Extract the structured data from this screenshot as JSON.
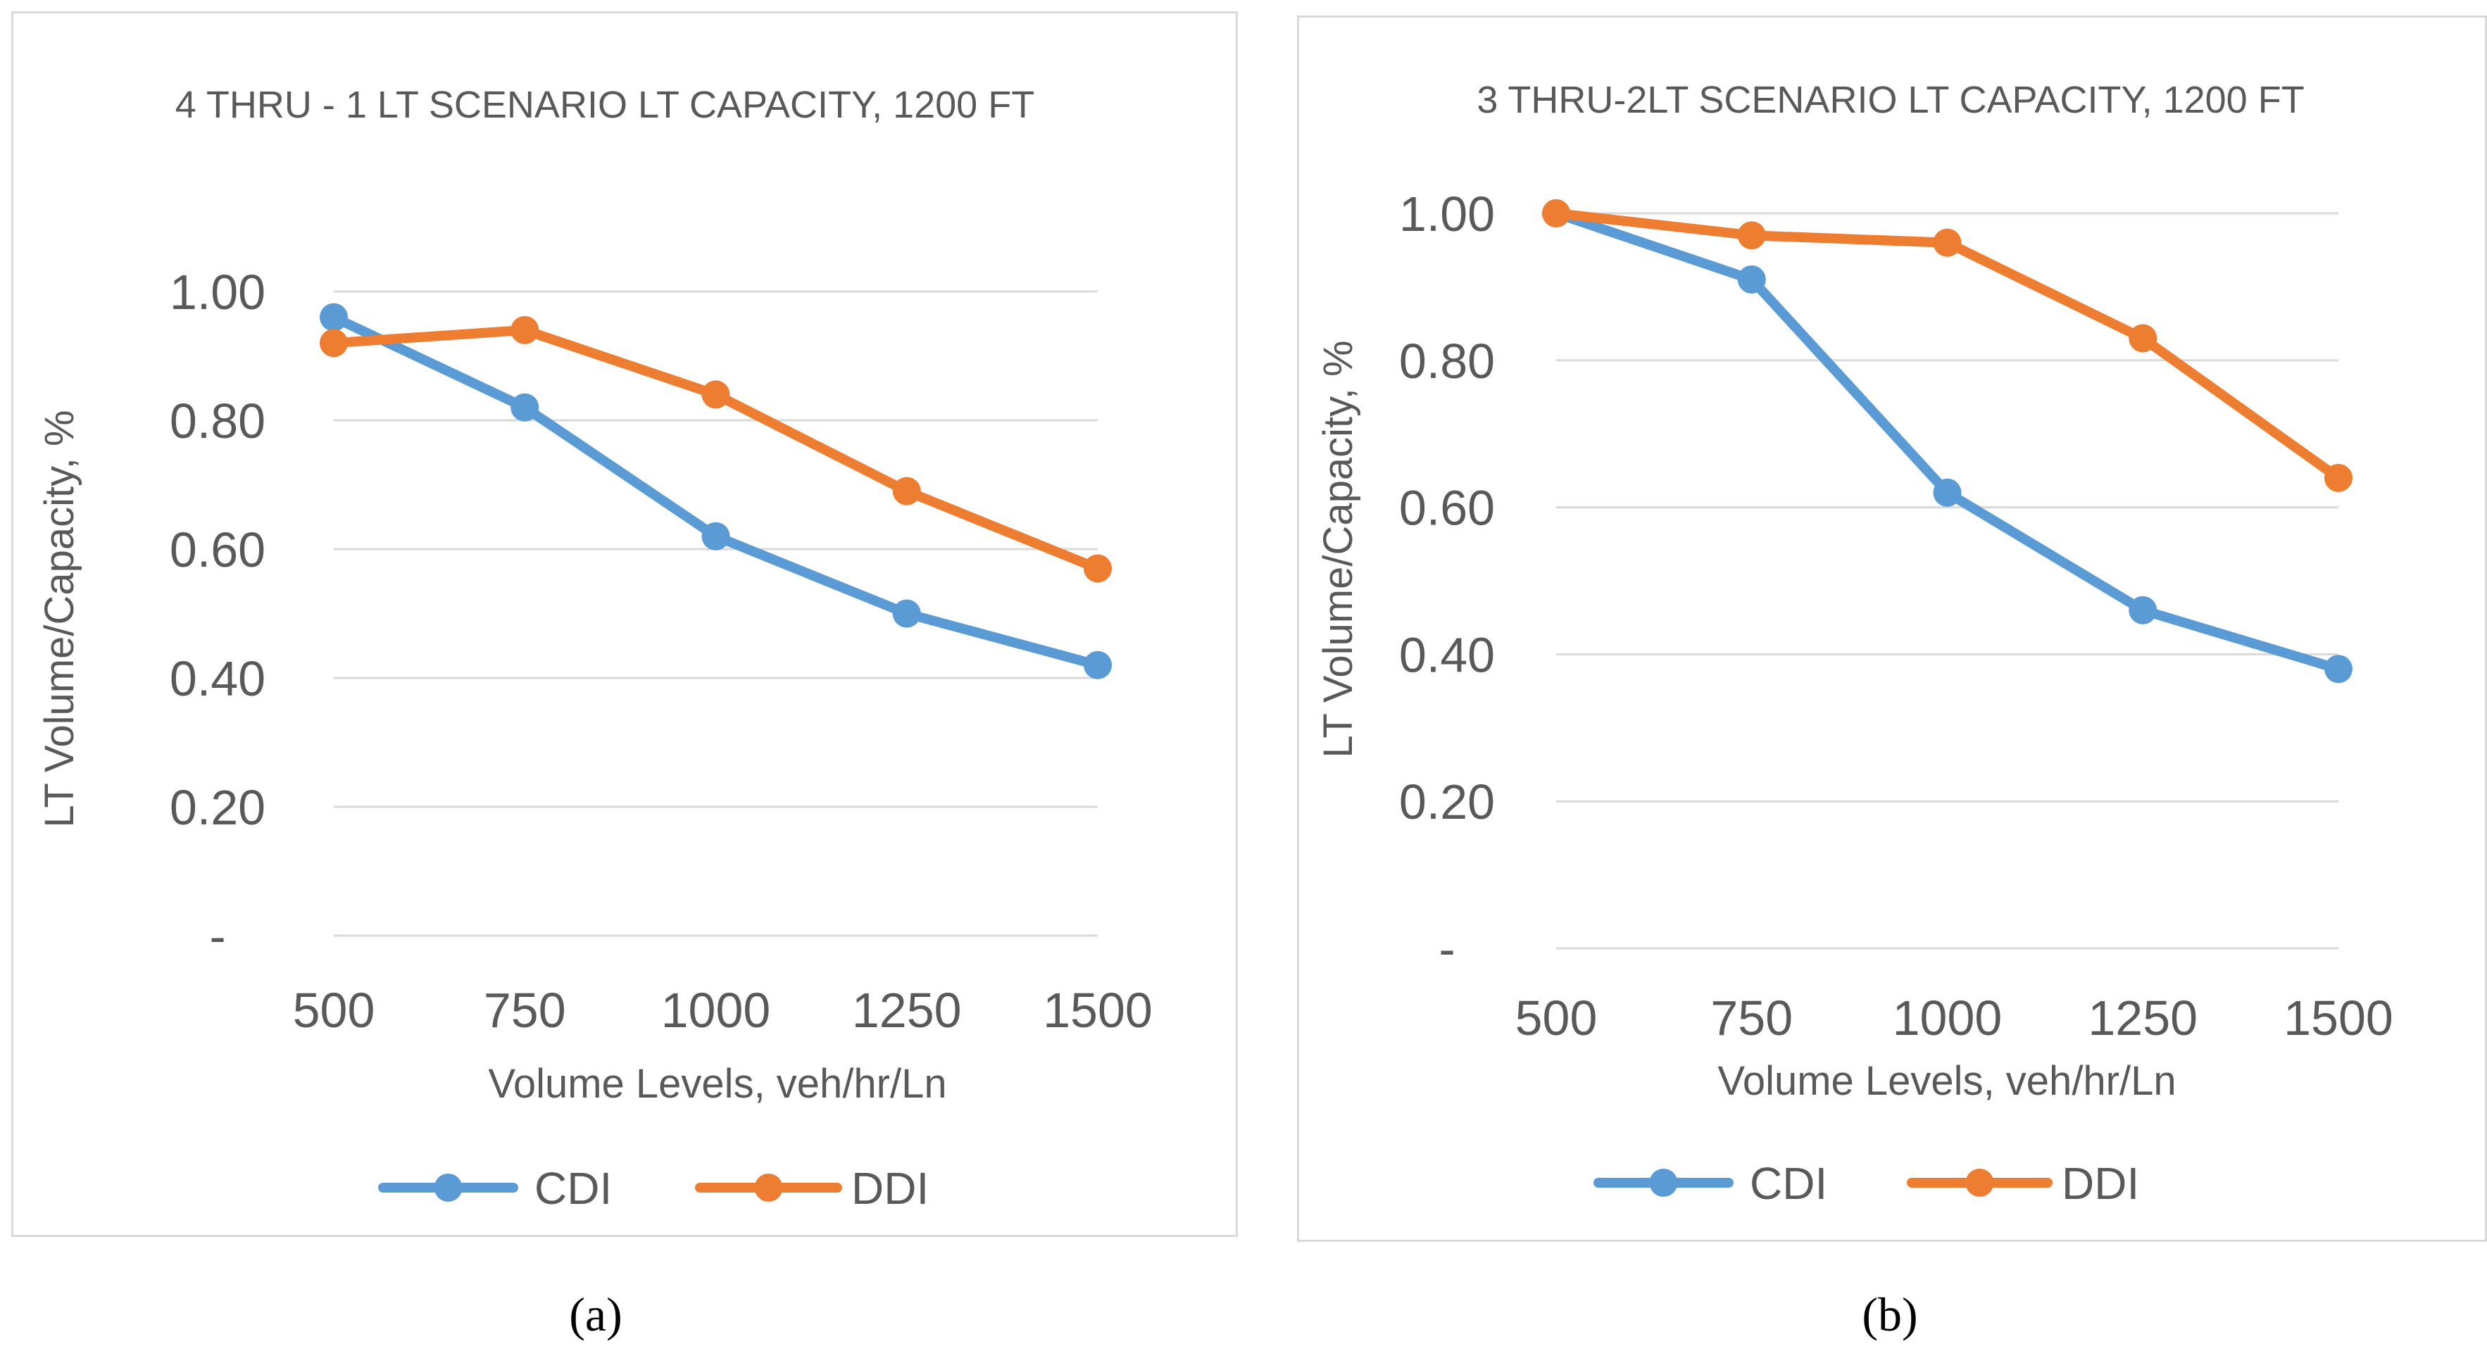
{
  "chart_data": [
    {
      "type": "line",
      "title": "4 THRU - 1 LT SCENARIO LT CAPACITY, 1200 FT",
      "xlabel": "Volume Levels, veh/hr/Ln",
      "ylabel": "LT Volume/Capacity, %",
      "categories": [
        "500",
        "750",
        "1000",
        "1250",
        "1500"
      ],
      "yticks": [
        "-",
        "0.20",
        "0.40",
        "0.60",
        "0.80",
        "1.00"
      ],
      "ylim": [
        0,
        1.0
      ],
      "grid": true,
      "legend": "bottom",
      "series": [
        {
          "name": "CDI",
          "color": "#5b9bd5",
          "values": [
            0.96,
            0.82,
            0.62,
            0.5,
            0.42
          ]
        },
        {
          "name": "DDI",
          "color": "#ed7d31",
          "values": [
            0.92,
            0.94,
            0.84,
            0.69,
            0.57
          ]
        }
      ],
      "caption": "(a)"
    },
    {
      "type": "line",
      "title": "3 THRU-2LT SCENARIO LT CAPACITY, 1200 FT",
      "xlabel": "Volume Levels, veh/hr/Ln",
      "ylabel": "LT Volume/Capacity, %",
      "categories": [
        "500",
        "750",
        "1000",
        "1250",
        "1500"
      ],
      "yticks": [
        "-",
        "0.20",
        "0.40",
        "0.60",
        "0.80",
        "1.00"
      ],
      "ylim": [
        0,
        1.0
      ],
      "grid": true,
      "legend": "bottom",
      "series": [
        {
          "name": "CDI",
          "color": "#5b9bd5",
          "values": [
            1.0,
            0.91,
            0.62,
            0.46,
            0.38
          ]
        },
        {
          "name": "DDI",
          "color": "#ed7d31",
          "values": [
            1.0,
            0.97,
            0.96,
            0.83,
            0.64
          ]
        }
      ],
      "caption": "(b)"
    }
  ]
}
